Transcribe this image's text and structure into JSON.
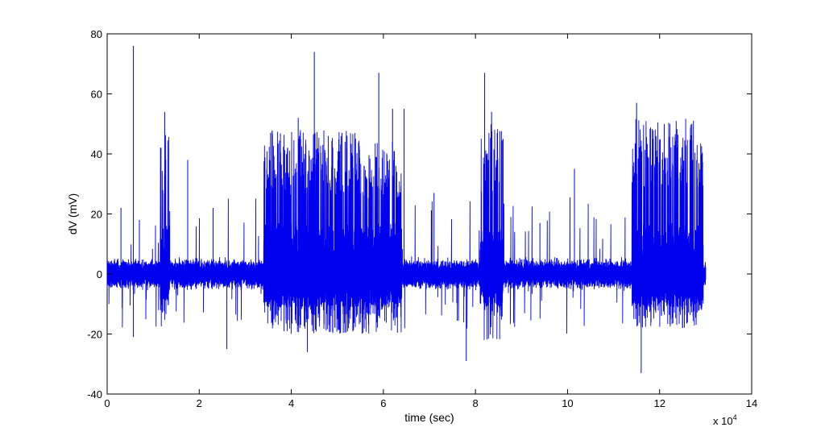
{
  "chart_data": {
    "type": "line",
    "title": "",
    "xlabel": "time (sec)",
    "ylabel": "dV (mV)",
    "x_exponent_label": "x 10",
    "x_exponent_power": "4",
    "xlim": [
      0,
      14
    ],
    "ylim": [
      -40,
      80
    ],
    "xticks": [
      0,
      2,
      4,
      6,
      8,
      10,
      12,
      14
    ],
    "yticks": [
      -40,
      -20,
      0,
      20,
      40,
      60,
      80
    ],
    "grid": false,
    "line_color": "#0000ee",
    "data_end_x": 13,
    "baseline_noise_mV": 3,
    "bursts": [
      {
        "x_start": 1.15,
        "x_end": 1.35,
        "amplitude_mV": 48,
        "negative_mV": -18
      },
      {
        "x_start": 3.4,
        "x_end": 5.5,
        "amplitude_mV": 48,
        "negative_mV": -20
      },
      {
        "x_start": 5.5,
        "x_end": 6.4,
        "amplitude_mV": 45,
        "negative_mV": -20
      },
      {
        "x_start": 8.1,
        "x_end": 8.6,
        "amplitude_mV": 50,
        "negative_mV": -22
      },
      {
        "x_start": 11.4,
        "x_end": 12.95,
        "amplitude_mV": 52,
        "negative_mV": -18
      }
    ],
    "spikes": [
      {
        "x": 0.57,
        "y": 76
      },
      {
        "x": 0.57,
        "y": -21
      },
      {
        "x": 1.25,
        "y": 54
      },
      {
        "x": 1.75,
        "y": 38
      },
      {
        "x": 0.3,
        "y": 22
      },
      {
        "x": 0.7,
        "y": 18
      },
      {
        "x": 2.3,
        "y": 22
      },
      {
        "x": 2.6,
        "y": -25
      },
      {
        "x": 3.55,
        "y": 47
      },
      {
        "x": 4.15,
        "y": 52
      },
      {
        "x": 4.5,
        "y": 74
      },
      {
        "x": 4.35,
        "y": -26
      },
      {
        "x": 5.1,
        "y": 47
      },
      {
        "x": 5.9,
        "y": 67
      },
      {
        "x": 6.2,
        "y": 55
      },
      {
        "x": 6.45,
        "y": 55
      },
      {
        "x": 7.1,
        "y": 27
      },
      {
        "x": 7.8,
        "y": -29
      },
      {
        "x": 8.2,
        "y": 67
      },
      {
        "x": 8.35,
        "y": 54
      },
      {
        "x": 8.6,
        "y": 45
      },
      {
        "x": 9.4,
        "y": 17
      },
      {
        "x": 10.15,
        "y": 35
      },
      {
        "x": 11.5,
        "y": 57
      },
      {
        "x": 11.6,
        "y": -33
      },
      {
        "x": 12.1,
        "y": 50
      },
      {
        "x": 12.7,
        "y": 50
      },
      {
        "x": 12.5,
        "y": -18
      }
    ]
  }
}
